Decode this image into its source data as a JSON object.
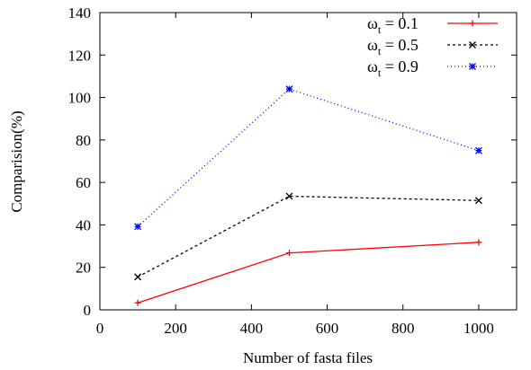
{
  "chart_data": {
    "type": "line",
    "xlabel": "Number of fasta files",
    "ylabel": "Comparision(%)",
    "xlim": [
      0,
      1100
    ],
    "ylim": [
      0,
      140
    ],
    "xticks": [
      0,
      200,
      400,
      600,
      800,
      1000
    ],
    "yticks": [
      0,
      20,
      40,
      60,
      80,
      100,
      120,
      140
    ],
    "xtick_labels": [
      "0",
      "200",
      "400",
      "600",
      "800",
      "1000"
    ],
    "ytick_labels": [
      "0",
      "20",
      "40",
      "60",
      "80",
      "100",
      "120",
      "140"
    ],
    "grid": false,
    "legend": "top-right",
    "x": [
      100,
      500,
      1000
    ],
    "series": [
      {
        "name": "ω_t = 0.1",
        "name_symbol": "ω",
        "name_sub": "t",
        "name_rest": " = 0.1",
        "values": [
          3.3,
          26.8,
          31.8
        ],
        "color": "#ff0000",
        "dash": "",
        "marker": "plus"
      },
      {
        "name": "ω_t = 0.5",
        "name_symbol": "ω",
        "name_sub": "t",
        "name_rest": " = 0.5",
        "values": [
          15.5,
          53.5,
          51.5
        ],
        "color": "#000000",
        "dash": "3,3",
        "marker": "cross"
      },
      {
        "name": "ω_t = 0.9",
        "name_symbol": "ω",
        "name_sub": "t",
        "name_rest": " = 0.9",
        "values": [
          39.2,
          104.0,
          75.0
        ],
        "color": "#0000ff",
        "dash": "1,3",
        "marker": "star"
      }
    ]
  }
}
